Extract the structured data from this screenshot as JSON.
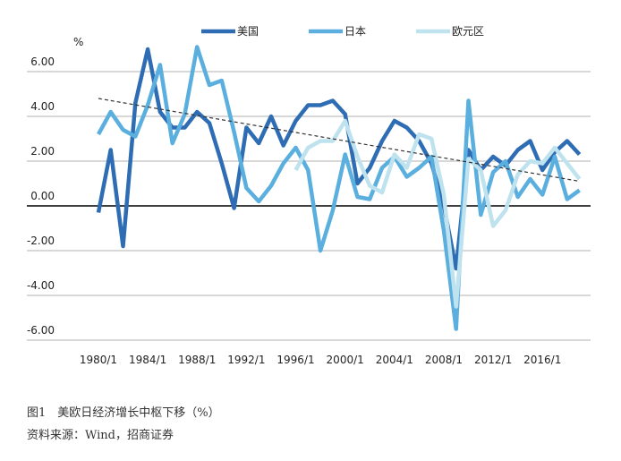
{
  "chart_data": {
    "type": "line",
    "y_unit": "%",
    "x": [
      1980,
      1981,
      1982,
      1983,
      1984,
      1985,
      1986,
      1987,
      1988,
      1989,
      1990,
      1991,
      1992,
      1993,
      1994,
      1995,
      1996,
      1997,
      1998,
      1999,
      2000,
      2001,
      2002,
      2003,
      2004,
      2005,
      2006,
      2007,
      2008,
      2009,
      2010,
      2011,
      2012,
      2013,
      2014,
      2015,
      2016,
      2017,
      2018,
      2019
    ],
    "series": [
      {
        "name": "美国",
        "color": "#2e6db4",
        "values": [
          -0.3,
          2.5,
          -1.8,
          4.6,
          7.0,
          4.2,
          3.5,
          3.5,
          4.2,
          3.7,
          1.9,
          -0.1,
          3.5,
          2.8,
          4.0,
          2.7,
          3.8,
          4.5,
          4.5,
          4.7,
          4.1,
          1.0,
          1.7,
          2.9,
          3.8,
          3.5,
          2.9,
          1.9,
          0.0,
          -2.8,
          2.5,
          1.6,
          2.2,
          1.8,
          2.5,
          2.9,
          1.6,
          2.4,
          2.9,
          2.3
        ]
      },
      {
        "name": "日本",
        "color": "#5aafdf",
        "values": [
          3.2,
          4.2,
          3.4,
          3.1,
          4.5,
          6.3,
          2.8,
          4.1,
          7.1,
          5.4,
          5.6,
          3.3,
          0.8,
          0.2,
          0.9,
          1.9,
          2.6,
          1.6,
          -2.0,
          -0.2,
          2.3,
          0.4,
          0.3,
          1.7,
          2.2,
          1.3,
          1.7,
          2.2,
          -1.1,
          -5.5,
          4.7,
          -0.4,
          1.5,
          2.0,
          0.4,
          1.2,
          0.5,
          2.2,
          0.3,
          0.7
        ]
      },
      {
        "name": "欧元区",
        "color": "#bfe2ef",
        "values": [
          null,
          null,
          null,
          null,
          null,
          null,
          null,
          null,
          null,
          null,
          null,
          null,
          null,
          null,
          null,
          null,
          1.6,
          2.6,
          2.9,
          2.9,
          3.8,
          2.2,
          0.9,
          0.6,
          2.3,
          1.7,
          3.2,
          3.0,
          0.5,
          -4.5,
          2.1,
          1.6,
          -0.9,
          -0.2,
          1.4,
          2.0,
          1.9,
          2.6,
          1.9,
          1.2
        ]
      }
    ],
    "trend": {
      "x": [
        1980,
        2019
      ],
      "values": [
        4.8,
        1.1
      ],
      "color": "#333333"
    },
    "xlim": [
      1974.2,
      2019.9
    ],
    "xticks": [
      {
        "value": 1980,
        "label": "1980/1"
      },
      {
        "value": 1984,
        "label": "1984/1"
      },
      {
        "value": 1988,
        "label": "1988/1"
      },
      {
        "value": 1992,
        "label": "1992/1"
      },
      {
        "value": 1996,
        "label": "1996/1"
      },
      {
        "value": 2000,
        "label": "2000/1"
      },
      {
        "value": 2004,
        "label": "2004/1"
      },
      {
        "value": 2008,
        "label": "2008/1"
      },
      {
        "value": 2012,
        "label": "2012/1"
      },
      {
        "value": 2016,
        "label": "2016/1"
      }
    ],
    "ylim": [
      -6,
      7.5
    ],
    "yticks": [
      {
        "value": -6,
        "label": "-6.00"
      },
      {
        "value": -4,
        "label": "-4.00"
      },
      {
        "value": -2,
        "label": "-2.00"
      },
      {
        "value": 0,
        "label": "0.00"
      },
      {
        "value": 2,
        "label": "2.00"
      },
      {
        "value": 4,
        "label": "4.00"
      },
      {
        "value": 6,
        "label": "6.00"
      }
    ],
    "grid": true,
    "caption": "图1　美欧日经济增长中枢下移（%）",
    "source": "资料来源：Wind，招商证券"
  }
}
